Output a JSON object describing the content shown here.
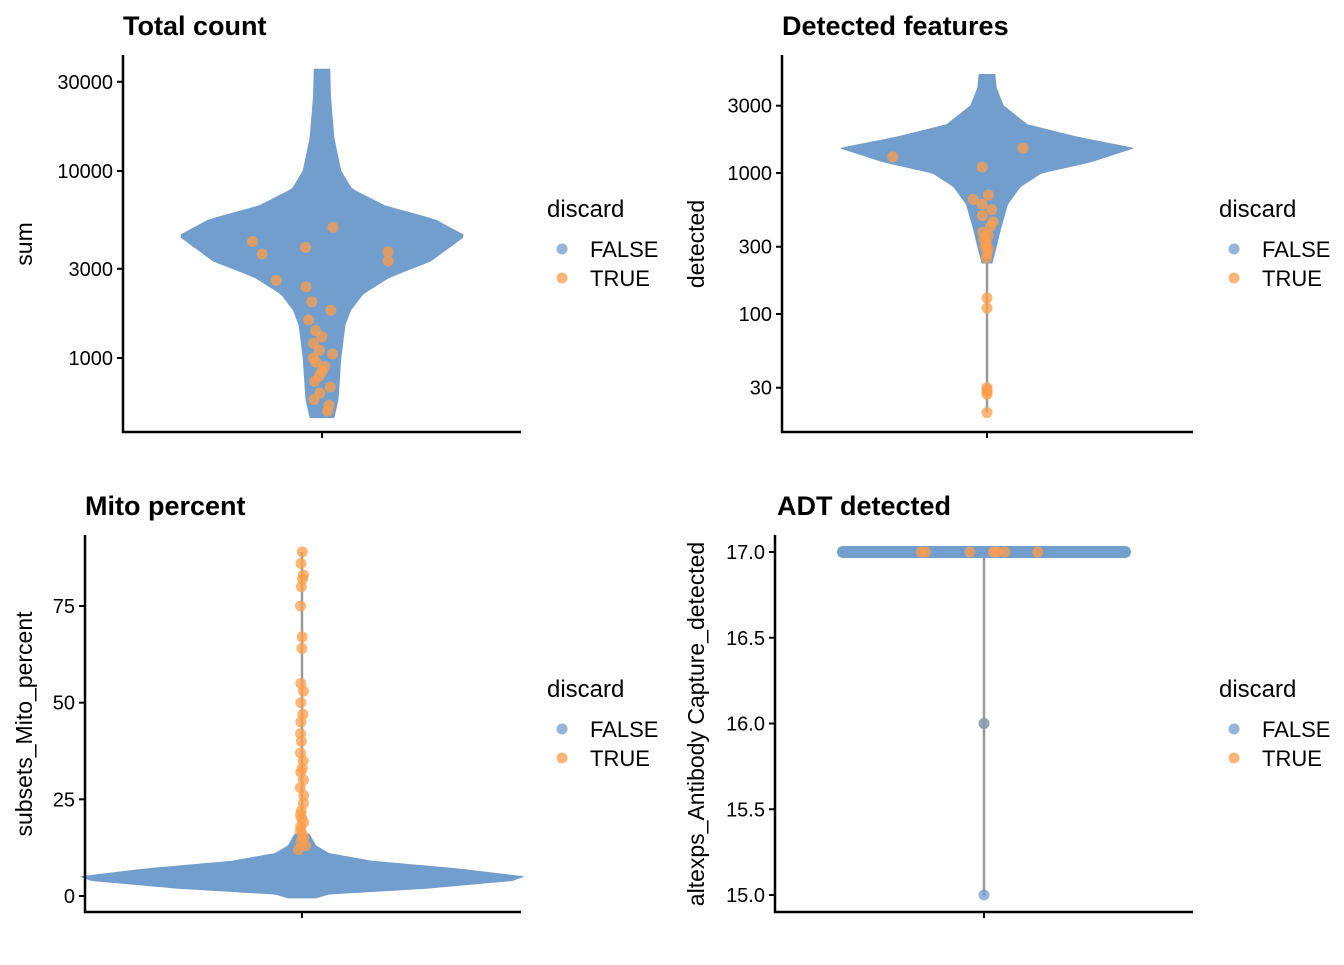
{
  "colors": {
    "FALSE": "#729ECE",
    "TRUE": "#FF9E4A",
    "line": "#9a9a9a"
  },
  "chart_data": [
    {
      "type": "violin-scatter",
      "title": "Total count",
      "ylabel": "sum",
      "xlabel": "",
      "yscale": "log10",
      "yticks": [
        1000,
        3000,
        10000,
        30000
      ],
      "ytick_labels": [
        "1000",
        "3000",
        "10000",
        "30000"
      ],
      "ylim": [
        430,
        40000
      ],
      "legend": {
        "title": "discard",
        "entries": [
          "FALSE",
          "TRUE"
        ],
        "position": "right"
      },
      "density_profile": [
        [
          480,
          0.05
        ],
        [
          600,
          0.08
        ],
        [
          1000,
          0.1
        ],
        [
          1500,
          0.13
        ],
        [
          1800,
          0.17
        ],
        [
          2200,
          0.26
        ],
        [
          2700,
          0.45
        ],
        [
          3300,
          0.75
        ],
        [
          4500,
          1.0
        ],
        [
          5500,
          0.78
        ],
        [
          6500,
          0.42
        ],
        [
          8000,
          0.18
        ],
        [
          10000,
          0.1
        ],
        [
          15000,
          0.05
        ],
        [
          25000,
          0.025
        ],
        [
          35000,
          0.02
        ]
      ],
      "true_points": [
        520,
        560,
        600,
        650,
        700,
        750,
        800,
        850,
        900,
        950,
        1000,
        1050,
        1100,
        1200,
        1300,
        1400,
        1600,
        1800,
        2000,
        2400,
        2600,
        3300,
        3600,
        3700,
        3900,
        4200,
        5000
      ],
      "tail_range": null
    },
    {
      "type": "violin-scatter",
      "title": "Detected features",
      "ylabel": "detected",
      "xlabel": "",
      "yscale": "log10",
      "yticks": [
        30,
        100,
        300,
        1000,
        3000
      ],
      "ytick_labels": [
        "30",
        "100",
        "300",
        "1000",
        "3000"
      ],
      "ylim": [
        17,
        6000
      ],
      "legend": {
        "title": "discard",
        "entries": [
          "FALSE",
          "TRUE"
        ],
        "position": "right"
      },
      "density_profile": [
        [
          230,
          0.0
        ],
        [
          300,
          0.03
        ],
        [
          400,
          0.06
        ],
        [
          600,
          0.11
        ],
        [
          800,
          0.2
        ],
        [
          1000,
          0.35
        ],
        [
          1200,
          0.7
        ],
        [
          1500,
          1.0
        ],
        [
          1800,
          0.6
        ],
        [
          2200,
          0.25
        ],
        [
          3000,
          0.08
        ],
        [
          4000,
          0.03
        ],
        [
          5000,
          0.02
        ]
      ],
      "true_points": [
        20,
        27,
        28,
        29,
        30,
        110,
        130,
        250,
        270,
        290,
        300,
        320,
        340,
        360,
        380,
        420,
        450,
        500,
        550,
        600,
        650,
        700,
        1100,
        1300,
        1500
      ],
      "tail_range": [
        20,
        300
      ]
    },
    {
      "type": "violin-scatter",
      "title": "Mito percent",
      "ylabel": "subsets_Mito_percent",
      "xlabel": "",
      "yscale": "linear",
      "yticks": [
        0,
        25,
        50,
        75
      ],
      "ytick_labels": [
        "0",
        "25",
        "50",
        "75"
      ],
      "ylim": [
        -4,
        93
      ],
      "legend": {
        "title": "discard",
        "entries": [
          "FALSE",
          "TRUE"
        ],
        "position": "right"
      },
      "density_profile": [
        [
          -0.5,
          0.04
        ],
        [
          0.5,
          0.1
        ],
        [
          2,
          0.55
        ],
        [
          4,
          0.95
        ],
        [
          5,
          1.0
        ],
        [
          7,
          0.7
        ],
        [
          9,
          0.3
        ],
        [
          11,
          0.1
        ],
        [
          13,
          0.04
        ],
        [
          16,
          0.01
        ]
      ],
      "true_points": [
        12,
        13,
        14,
        15,
        16,
        17,
        18,
        19,
        20,
        21,
        22,
        24,
        26,
        28,
        30,
        32,
        33,
        35,
        37,
        40,
        42,
        45,
        47,
        50,
        53,
        55,
        64,
        67,
        75,
        80,
        82,
        83,
        86,
        89
      ],
      "tail_range": [
        12,
        89
      ]
    },
    {
      "type": "violin-scatter",
      "title": "ADT detected",
      "ylabel": "altexps_Antibody Capture_detected",
      "xlabel": "",
      "yscale": "linear",
      "yticks": [
        15.0,
        15.5,
        16.0,
        16.5,
        17.0
      ],
      "ytick_labels": [
        "15.0",
        "15.5",
        "16.0",
        "16.5",
        "17.0"
      ],
      "ylim": [
        14.9,
        17.1
      ],
      "legend": {
        "title": "discard",
        "entries": [
          "FALSE",
          "TRUE"
        ],
        "position": "right"
      },
      "density_profile": [
        [
          17,
          1.0
        ]
      ],
      "true_points": [
        17,
        17,
        17,
        17,
        17,
        17,
        17
      ],
      "false_points": [
        16,
        15
      ],
      "tail_range": [
        15,
        17
      ]
    }
  ]
}
